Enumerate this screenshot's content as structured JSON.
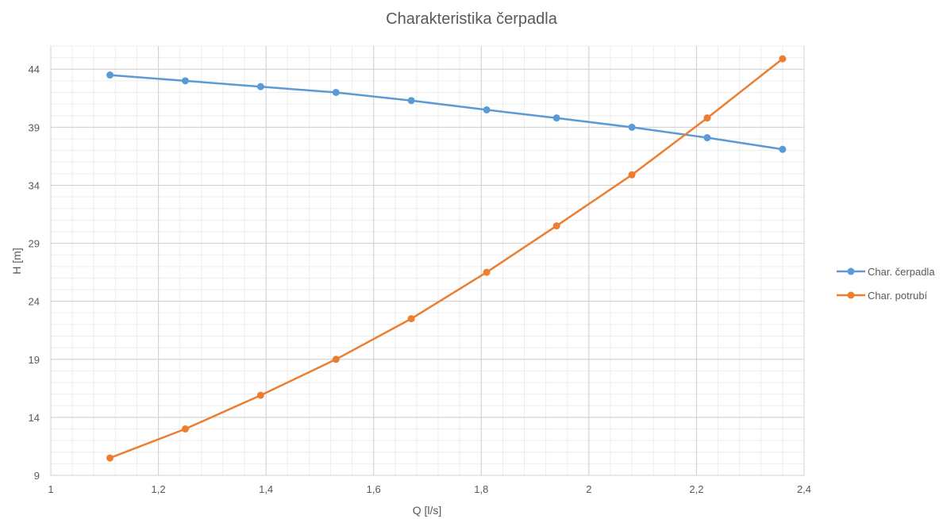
{
  "chart_data": {
    "type": "line",
    "title": "Charakteristika čerpadla",
    "xlabel": "Q [l/s]",
    "ylabel": "H [m]",
    "xlim": [
      1,
      2.4
    ],
    "ylim": [
      9,
      46
    ],
    "x_major_step": 0.2,
    "x_minor_step": 0.04,
    "y_major_ticks": [
      9,
      14,
      19,
      24,
      29,
      34,
      39,
      44
    ],
    "y_minor_step": 1,
    "x_tick_labels": [
      "1",
      "1,2",
      "1,4",
      "1,6",
      "1,8",
      "2",
      "2,2",
      "2,4"
    ],
    "y_tick_labels": [
      "9",
      "14",
      "19",
      "24",
      "29",
      "34",
      "39",
      "44"
    ],
    "grid": true,
    "legend_position": "right",
    "series": [
      {
        "name": "Char. čerpadla",
        "color": "#5B9BD5",
        "x": [
          1.11,
          1.25,
          1.39,
          1.53,
          1.67,
          1.81,
          1.94,
          2.08,
          2.22,
          2.36
        ],
        "values": [
          43.5,
          43.0,
          42.5,
          42.0,
          41.3,
          40.5,
          39.8,
          39.0,
          38.1,
          37.1
        ]
      },
      {
        "name": "Char. potrubí",
        "color": "#ED7D31",
        "x": [
          1.11,
          1.25,
          1.39,
          1.53,
          1.67,
          1.81,
          1.94,
          2.08,
          2.22,
          2.36
        ],
        "values": [
          10.5,
          13.0,
          15.9,
          19.0,
          22.5,
          26.5,
          30.5,
          34.9,
          39.8,
          44.9
        ]
      }
    ]
  }
}
